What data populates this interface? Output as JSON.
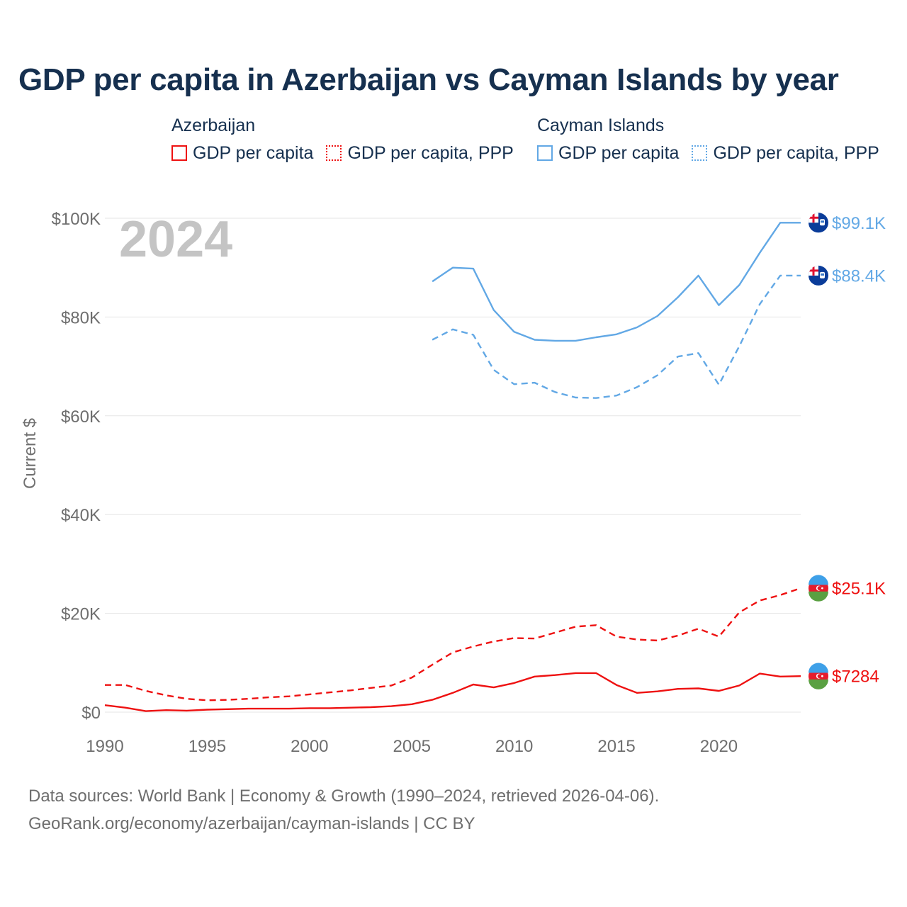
{
  "title": "GDP per capita in Azerbaijan vs Cayman Islands by year",
  "legend": {
    "groups": [
      {
        "name": "Azerbaijan",
        "items": [
          {
            "label": "GDP per capita",
            "style": "solid",
            "color": "#ee1111"
          },
          {
            "label": "GDP per capita, PPP",
            "style": "dotted",
            "color": "#ee1111"
          }
        ]
      },
      {
        "name": "Cayman Islands",
        "items": [
          {
            "label": "GDP per capita",
            "style": "solid",
            "color": "#62a8e5"
          },
          {
            "label": "GDP per capita, PPP",
            "style": "dotted",
            "color": "#62a8e5"
          }
        ]
      }
    ]
  },
  "source": {
    "line1": "Data sources: World Bank | Economy & Growth (1990–2024, retrieved 2026-04-06).",
    "line2": "GeoRank.org/economy/azerbaijan/cayman-islands | CC BY"
  },
  "chart_data": {
    "type": "line",
    "year_label": "2024",
    "ylabel": "Current $",
    "ylim": [
      0,
      100000
    ],
    "xlim": [
      1990,
      2024
    ],
    "x_ticks": [
      1990,
      1995,
      2000,
      2005,
      2010,
      2015,
      2020
    ],
    "x_tick_labels": [
      "1990",
      "1995",
      "2000",
      "2005",
      "2010",
      "2015",
      "2020"
    ],
    "y_ticks": [
      0,
      20000,
      40000,
      60000,
      80000,
      100000
    ],
    "y_tick_labels": [
      "$0",
      "$20K",
      "$40K",
      "$60K",
      "$80K",
      "$100K"
    ],
    "grid": true,
    "series": [
      {
        "name": "Cayman Islands GDP per capita",
        "country": "Cayman Islands",
        "color": "#62a8e5",
        "dash": "solid",
        "end_label": "$99.1K",
        "flag": "cayman-islands",
        "x": [
          2006,
          2007,
          2008,
          2009,
          2010,
          2011,
          2012,
          2013,
          2014,
          2015,
          2016,
          2017,
          2018,
          2019,
          2020,
          2021,
          2022,
          2023,
          2024
        ],
        "values": [
          87200,
          90000,
          89800,
          81400,
          77000,
          75400,
          75200,
          75200,
          75900,
          76500,
          77900,
          80200,
          84000,
          88400,
          82400,
          86500,
          93000,
          99100,
          99100
        ]
      },
      {
        "name": "Cayman Islands GDP per capita, PPP",
        "country": "Cayman Islands",
        "color": "#62a8e5",
        "dash": "dashed",
        "end_label": "$88.4K",
        "flag": "cayman-islands",
        "x": [
          2006,
          2007,
          2008,
          2009,
          2010,
          2011,
          2012,
          2013,
          2014,
          2015,
          2016,
          2017,
          2018,
          2019,
          2020,
          2021,
          2022,
          2023,
          2024
        ],
        "values": [
          75400,
          77500,
          76400,
          69300,
          66400,
          66700,
          64800,
          63700,
          63600,
          64100,
          65800,
          68200,
          72000,
          72700,
          66300,
          74100,
          82600,
          88400,
          88400
        ]
      },
      {
        "name": "Azerbaijan GDP per capita, PPP",
        "country": "Azerbaijan",
        "color": "#ee1111",
        "dash": "dashed",
        "end_label": "$25.1K",
        "flag": "azerbaijan",
        "x": [
          1990,
          1991,
          1992,
          1993,
          1994,
          1995,
          1996,
          1997,
          1998,
          1999,
          2000,
          2001,
          2002,
          2003,
          2004,
          2005,
          2006,
          2007,
          2008,
          2009,
          2010,
          2011,
          2012,
          2013,
          2014,
          2015,
          2016,
          2017,
          2018,
          2019,
          2020,
          2021,
          2022,
          2023,
          2024
        ],
        "values": [
          5500,
          5500,
          4300,
          3400,
          2700,
          2400,
          2500,
          2700,
          3000,
          3200,
          3600,
          4000,
          4400,
          4900,
          5400,
          7000,
          9600,
          12100,
          13300,
          14300,
          15000,
          14900,
          16100,
          17300,
          17600,
          15300,
          14700,
          14500,
          15500,
          16900,
          15300,
          20200,
          22600,
          23700,
          25100
        ]
      },
      {
        "name": "Azerbaijan GDP per capita",
        "country": "Azerbaijan",
        "color": "#ee1111",
        "dash": "solid",
        "end_label": "$7284",
        "flag": "azerbaijan",
        "x": [
          1990,
          1991,
          1992,
          1993,
          1994,
          1995,
          1996,
          1997,
          1998,
          1999,
          2000,
          2001,
          2002,
          2003,
          2004,
          2005,
          2006,
          2007,
          2008,
          2009,
          2010,
          2011,
          2012,
          2013,
          2014,
          2015,
          2016,
          2017,
          2018,
          2019,
          2020,
          2021,
          2022,
          2023,
          2024
        ],
        "values": [
          1400,
          900,
          200,
          400,
          300,
          500,
          600,
          700,
          700,
          700,
          800,
          800,
          900,
          1000,
          1200,
          1600,
          2500,
          3900,
          5600,
          5000,
          5900,
          7200,
          7500,
          7900,
          7900,
          5500,
          3900,
          4200,
          4700,
          4800,
          4300,
          5400,
          7800,
          7200,
          7284
        ]
      }
    ]
  }
}
